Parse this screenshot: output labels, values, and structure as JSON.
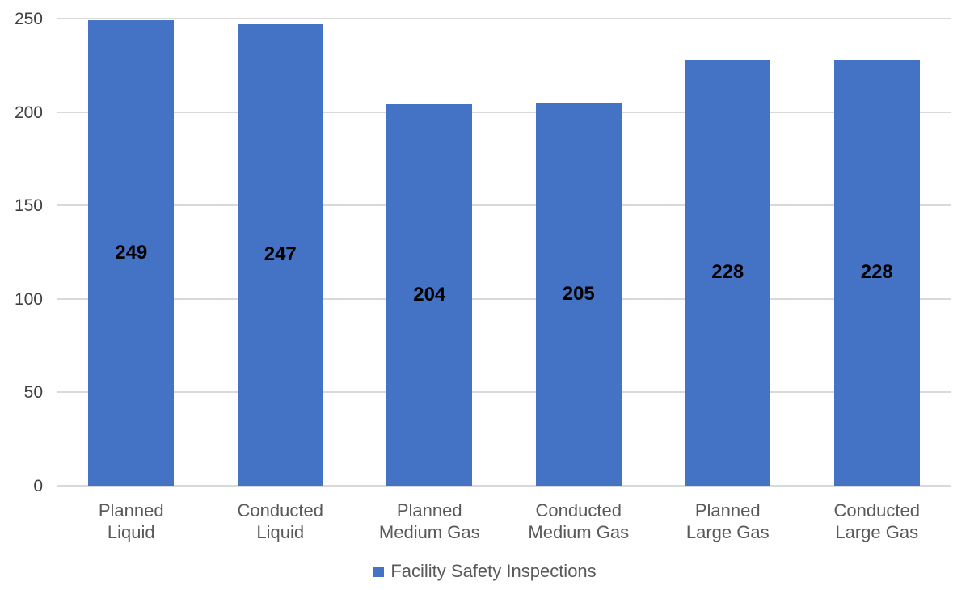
{
  "chart_data": {
    "type": "bar",
    "categories": [
      "Planned\nLiquid",
      "Conducted\nLiquid",
      "Planned\nMedium Gas",
      "Conducted\nMedium Gas",
      "Planned\nLarge Gas",
      "Conducted\nLarge Gas"
    ],
    "values": [
      249,
      247,
      204,
      205,
      228,
      228
    ],
    "series_name": "Facility Safety Inspections",
    "title": "",
    "xlabel": "",
    "ylabel": "",
    "ylim": [
      0,
      250
    ],
    "yticks": [
      0,
      50,
      100,
      150,
      200,
      250
    ],
    "grid": true,
    "legend_position": "bottom",
    "data_labels_position": "inside-center",
    "colors": {
      "bar": "#4472C4",
      "gridline": "#D9D9D9",
      "axis_line": "#D9D9D9",
      "ytick_label": "#404040",
      "xtick_label": "#595959",
      "data_label": "#000000",
      "legend_text": "#595959",
      "background": "#FFFFFF"
    }
  }
}
